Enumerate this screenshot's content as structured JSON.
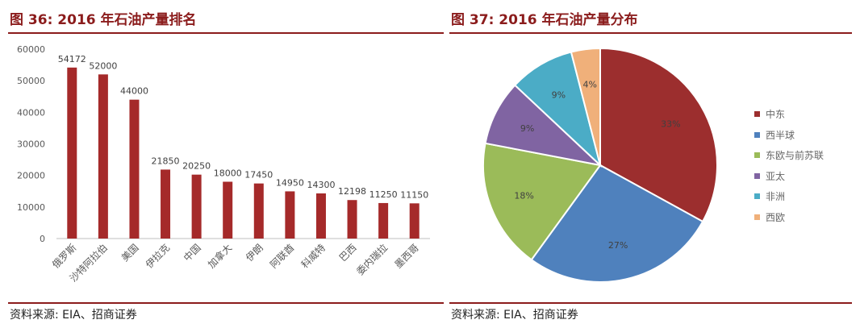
{
  "left": {
    "title": "图 36:  2016 年石油产量排名",
    "source": "资料来源: EIA、招商证券"
  },
  "right": {
    "title": "图 37:  2016 年石油产量分布",
    "source": "资料来源: EIA、招商证券"
  },
  "colors": {
    "accent": "#8b1c1c",
    "bar": "#a52a2a"
  },
  "chart_data": [
    {
      "type": "bar",
      "title": "",
      "xlabel": "",
      "ylabel": "",
      "ylim": [
        0,
        60000
      ],
      "yticks": [
        0,
        10000,
        20000,
        30000,
        40000,
        50000,
        60000
      ],
      "grid": false,
      "categories": [
        "俄罗斯",
        "沙特阿拉伯",
        "美国",
        "伊拉克",
        "中国",
        "加拿大",
        "伊朗",
        "阿联酋",
        "科威特",
        "巴西",
        "委内瑞拉",
        "墨西哥"
      ],
      "values": [
        54172,
        52000,
        44000,
        21850,
        20250,
        18000,
        17450,
        14950,
        14300,
        12198,
        11250,
        11150
      ],
      "data_labels": [
        "54172",
        "52000",
        "44000",
        "21850",
        "20250",
        "18000",
        "17450",
        "14950",
        "14300",
        "12198",
        "11250",
        "11150"
      ],
      "color": "#a52a2a"
    },
    {
      "type": "pie",
      "title": "",
      "legend_position": "right",
      "slices": [
        {
          "label": "中东",
          "value": 33,
          "text": "33%",
          "color": "#9c2e2e"
        },
        {
          "label": "西半球",
          "value": 27,
          "text": "27%",
          "color": "#4f81bd"
        },
        {
          "label": "东欧与前苏联",
          "value": 18,
          "text": "18%",
          "color": "#9bbb59"
        },
        {
          "label": "亚太",
          "value": 9,
          "text": "9%",
          "color": "#8064a2"
        },
        {
          "label": "非洲",
          "value": 9,
          "text": "9%",
          "color": "#4bacc6"
        },
        {
          "label": "西欧",
          "value": 4,
          "text": "4%",
          "color": "#f0b07a"
        }
      ]
    }
  ]
}
